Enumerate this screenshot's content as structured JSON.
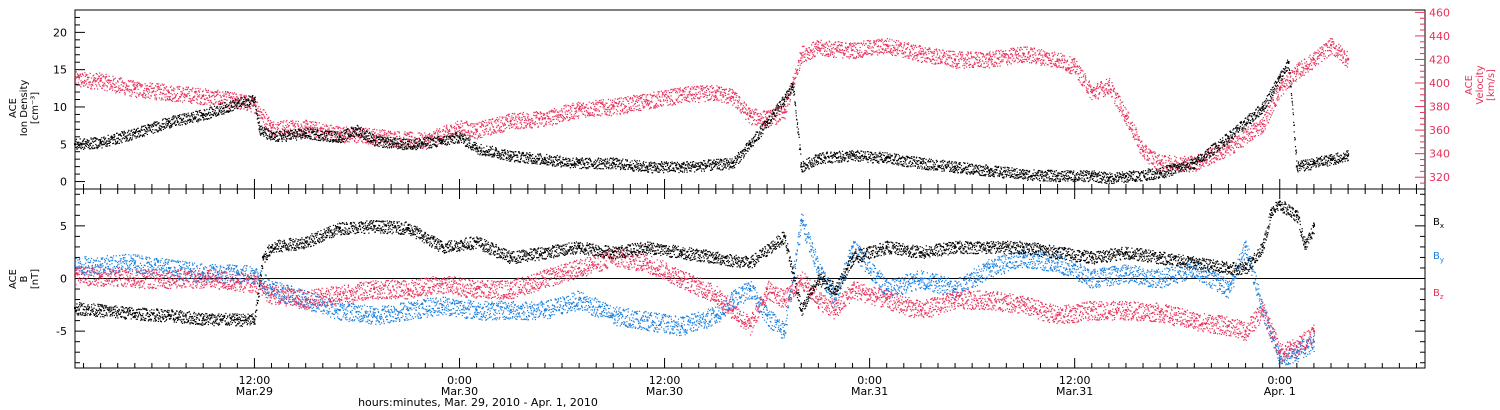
{
  "colors": {
    "black": "#000000",
    "red": "#e8315a",
    "blue": "#1a7fe0"
  },
  "footer_label": "hours:minutes, Mar. 29, 2010 - Apr. 1, 2010",
  "time_ticks": [
    {
      "t": 13,
      "line1": "12:00",
      "line2": "Mar.29"
    },
    {
      "t": 25,
      "line1": "0:00",
      "line2": "Mar.30"
    },
    {
      "t": 37,
      "line1": "12:00",
      "line2": "Mar.30"
    },
    {
      "t": 49,
      "line1": "0:00",
      "line2": "Mar.31"
    },
    {
      "t": 61,
      "line1": "12:00",
      "line2": "Mar.31"
    },
    {
      "t": 73,
      "line1": "0:00",
      "line2": "Apr. 1"
    }
  ],
  "chart_data": [
    {
      "type": "scatter",
      "panel": "top",
      "ylabel_left": [
        "ACE",
        "Ion Density",
        "[cm⁻³]"
      ],
      "ylabel_right": [
        "ACE",
        "Velocity",
        "[km/s]"
      ],
      "xlim": [
        2.5,
        81.5
      ],
      "ylim_left": [
        -1,
        23
      ],
      "ylim_right": [
        310,
        462
      ],
      "yticks_left": [
        0,
        5,
        10,
        15,
        20
      ],
      "yticks_right": [
        320,
        340,
        360,
        380,
        400,
        420,
        440,
        460
      ],
      "series": [
        {
          "axis": "left",
          "color": "black",
          "points": [
            [
              2.5,
              5
            ],
            [
              4,
              5.3
            ],
            [
              6,
              6.5
            ],
            [
              8,
              8
            ],
            [
              10,
              9
            ],
            [
              12,
              10.5
            ],
            [
              13,
              11
            ],
            [
              13.3,
              7
            ],
            [
              14,
              6
            ],
            [
              16,
              6.5
            ],
            [
              18,
              6
            ],
            [
              19,
              7
            ],
            [
              20,
              5.5
            ],
            [
              22,
              5
            ],
            [
              24,
              5.5
            ],
            [
              25,
              6
            ],
            [
              26,
              4.5
            ],
            [
              28,
              3.5
            ],
            [
              30,
              3
            ],
            [
              32,
              2.5
            ],
            [
              34,
              2.5
            ],
            [
              36,
              2
            ],
            [
              38,
              2
            ],
            [
              40,
              2.3
            ],
            [
              41,
              2.5
            ],
            [
              42,
              5
            ],
            [
              43,
              8
            ],
            [
              44,
              11
            ],
            [
              44.5,
              13
            ],
            [
              45,
              2
            ],
            [
              46,
              3.2
            ],
            [
              48,
              3.5
            ],
            [
              50,
              3.2
            ],
            [
              52,
              2.5
            ],
            [
              54,
              2
            ],
            [
              56,
              1.5
            ],
            [
              58,
              1
            ],
            [
              60,
              0.8
            ],
            [
              62,
              0.8
            ],
            [
              63,
              0.5
            ],
            [
              64,
              0.7
            ],
            [
              66,
              1.2
            ],
            [
              68,
              2.5
            ],
            [
              70,
              6
            ],
            [
              72,
              10
            ],
            [
              73,
              14
            ],
            [
              73.5,
              16
            ],
            [
              74,
              2
            ],
            [
              75,
              2.5
            ],
            [
              76,
              3
            ],
            [
              77,
              3.5
            ]
          ]
        },
        {
          "axis": "right",
          "color": "red",
          "points": [
            [
              2.5,
              403
            ],
            [
              4,
              402
            ],
            [
              6,
              395
            ],
            [
              8,
              392
            ],
            [
              10,
              389
            ],
            [
              12,
              385
            ],
            [
              13,
              382
            ],
            [
              14,
              362
            ],
            [
              16,
              362
            ],
            [
              18,
              357
            ],
            [
              20,
              355
            ],
            [
              22,
              352
            ],
            [
              23,
              351
            ],
            [
              25,
              362
            ],
            [
              26,
              360
            ],
            [
              28,
              368
            ],
            [
              30,
              370
            ],
            [
              32,
              378
            ],
            [
              34,
              380
            ],
            [
              36,
              385
            ],
            [
              38,
              390
            ],
            [
              40,
              392
            ],
            [
              41,
              388
            ],
            [
              42,
              372
            ],
            [
              43,
              370
            ],
            [
              44,
              375
            ],
            [
              45,
              425
            ],
            [
              46,
              430
            ],
            [
              48,
              428
            ],
            [
              50,
              432
            ],
            [
              52,
              425
            ],
            [
              54,
              420
            ],
            [
              56,
              420
            ],
            [
              58,
              425
            ],
            [
              60,
              420
            ],
            [
              61,
              414
            ],
            [
              62,
              392
            ],
            [
              63,
              398
            ],
            [
              64,
              372
            ],
            [
              65,
              342
            ],
            [
              66,
              332
            ],
            [
              68,
              332
            ],
            [
              70,
              345
            ],
            [
              72,
              365
            ],
            [
              73,
              395
            ],
            [
              74,
              410
            ],
            [
              75,
              420
            ],
            [
              76,
              432
            ],
            [
              77,
              420
            ]
          ]
        }
      ]
    },
    {
      "type": "scatter",
      "panel": "bottom",
      "ylabel_left": [
        "ACE",
        "B",
        "[nT]"
      ],
      "xlim": [
        2.5,
        81.5
      ],
      "ylim": [
        -8.5,
        8.5
      ],
      "yticks": [
        -5,
        0,
        5
      ],
      "series": [
        {
          "name": "Bx",
          "color": "black",
          "points": [
            [
              2.5,
              -2.8
            ],
            [
              4,
              -3
            ],
            [
              6,
              -3.3
            ],
            [
              8,
              -3.5
            ],
            [
              10,
              -3.8
            ],
            [
              12,
              -3.9
            ],
            [
              13,
              -3.9
            ],
            [
              13.5,
              2
            ],
            [
              14,
              3
            ],
            [
              16,
              3.5
            ],
            [
              18,
              4.8
            ],
            [
              20,
              5
            ],
            [
              22,
              4.8
            ],
            [
              24,
              3
            ],
            [
              26,
              3.5
            ],
            [
              28,
              2
            ],
            [
              30,
              2.5
            ],
            [
              32,
              3
            ],
            [
              34,
              2.5
            ],
            [
              36,
              3
            ],
            [
              38,
              2.5
            ],
            [
              40,
              2
            ],
            [
              42,
              1.5
            ],
            [
              44,
              4
            ],
            [
              45,
              -3
            ],
            [
              46,
              0
            ],
            [
              47,
              -1
            ],
            [
              48,
              2
            ],
            [
              50,
              3
            ],
            [
              52,
              2.5
            ],
            [
              54,
              3
            ],
            [
              56,
              3
            ],
            [
              58,
              3
            ],
            [
              60,
              2.5
            ],
            [
              62,
              2
            ],
            [
              64,
              2.5
            ],
            [
              66,
              2
            ],
            [
              68,
              1.5
            ],
            [
              70,
              1
            ],
            [
              71,
              1
            ],
            [
              72,
              3
            ],
            [
              72.5,
              6.5
            ],
            [
              73,
              7
            ],
            [
              74,
              6
            ],
            [
              74.5,
              3
            ],
            [
              75,
              5
            ]
          ]
        },
        {
          "name": "By",
          "color": "blue",
          "points": [
            [
              2.5,
              1.2
            ],
            [
              4,
              1.3
            ],
            [
              6,
              1.5
            ],
            [
              8,
              1
            ],
            [
              10,
              0.5
            ],
            [
              12,
              0.5
            ],
            [
              13,
              0.5
            ],
            [
              14,
              -1
            ],
            [
              16,
              -2
            ],
            [
              18,
              -3
            ],
            [
              20,
              -3.5
            ],
            [
              22,
              -3
            ],
            [
              24,
              -2.5
            ],
            [
              26,
              -3
            ],
            [
              28,
              -3
            ],
            [
              30,
              -3
            ],
            [
              32,
              -2
            ],
            [
              34,
              -3.5
            ],
            [
              36,
              -4
            ],
            [
              38,
              -4.5
            ],
            [
              40,
              -3.5
            ],
            [
              41,
              -2
            ],
            [
              42,
              -1
            ],
            [
              43,
              -3.5
            ],
            [
              44,
              -5
            ],
            [
              45,
              5.5
            ],
            [
              46,
              1
            ],
            [
              47,
              -2
            ],
            [
              48,
              3
            ],
            [
              50,
              -1
            ],
            [
              52,
              0
            ],
            [
              54,
              -1
            ],
            [
              56,
              1
            ],
            [
              58,
              2
            ],
            [
              60,
              1.5
            ],
            [
              62,
              0
            ],
            [
              64,
              0.5
            ],
            [
              66,
              0
            ],
            [
              68,
              1
            ],
            [
              70,
              -1
            ],
            [
              71,
              3
            ],
            [
              72,
              -3
            ],
            [
              73,
              -7.5
            ],
            [
              74,
              -7
            ],
            [
              75,
              -6
            ]
          ]
        },
        {
          "name": "Bz",
          "color": "red",
          "points": [
            [
              2.5,
              0.3
            ],
            [
              4,
              0.2
            ],
            [
              6,
              0
            ],
            [
              8,
              0
            ],
            [
              10,
              0
            ],
            [
              12,
              -0.3
            ],
            [
              13,
              -0.5
            ],
            [
              14,
              -1.5
            ],
            [
              16,
              -2
            ],
            [
              18,
              -1.5
            ],
            [
              20,
              -1
            ],
            [
              22,
              -1
            ],
            [
              24,
              -0.5
            ],
            [
              26,
              -1
            ],
            [
              28,
              -1
            ],
            [
              30,
              0
            ],
            [
              32,
              1
            ],
            [
              34,
              2
            ],
            [
              36,
              1.5
            ],
            [
              38,
              0
            ],
            [
              40,
              -1.5
            ],
            [
              41,
              -3
            ],
            [
              42,
              -4.5
            ],
            [
              43,
              -1
            ],
            [
              44,
              -2
            ],
            [
              45,
              0
            ],
            [
              46,
              -2
            ],
            [
              47,
              -3
            ],
            [
              48,
              -1
            ],
            [
              50,
              -2
            ],
            [
              52,
              -3
            ],
            [
              54,
              -2
            ],
            [
              56,
              -2
            ],
            [
              58,
              -2.5
            ],
            [
              60,
              -3.5
            ],
            [
              62,
              -3
            ],
            [
              64,
              -3
            ],
            [
              66,
              -3.2
            ],
            [
              68,
              -4
            ],
            [
              70,
              -4.5
            ],
            [
              71,
              -5
            ],
            [
              72,
              -3
            ],
            [
              73,
              -7
            ],
            [
              74,
              -6.5
            ],
            [
              75,
              -5
            ]
          ]
        }
      ],
      "legend": [
        {
          "label": "B",
          "sub": "x",
          "color": "black"
        },
        {
          "label": "B",
          "sub": "y",
          "color": "blue"
        },
        {
          "label": "B",
          "sub": "z",
          "color": "red"
        }
      ]
    }
  ]
}
